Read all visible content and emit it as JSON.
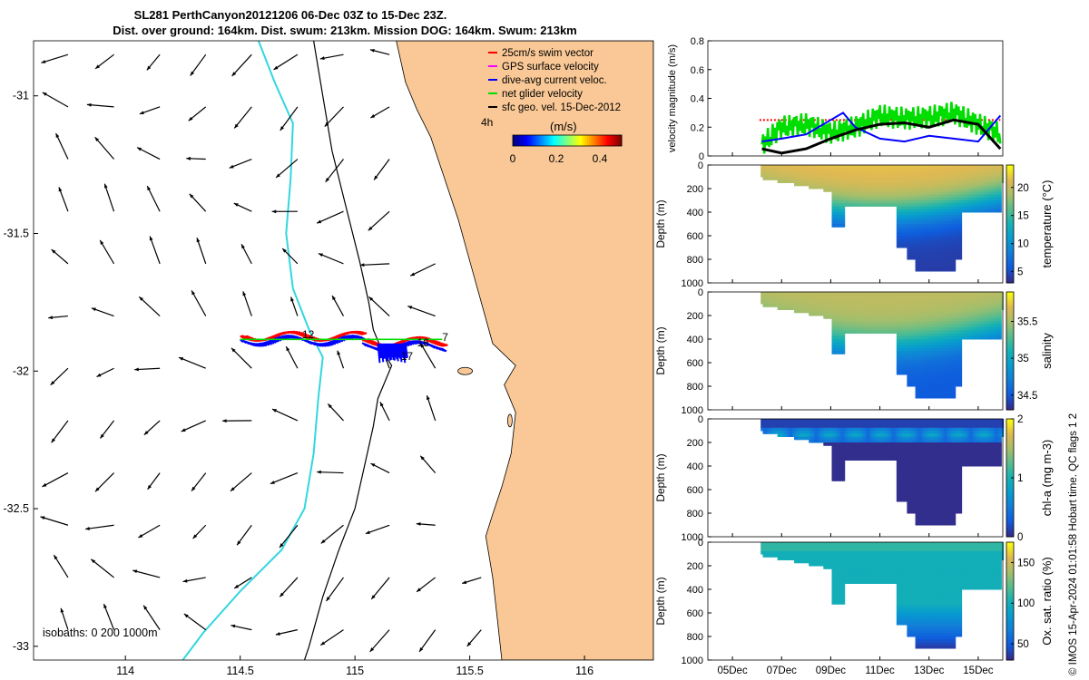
{
  "title": {
    "line1": "SL281 PerthCanyon20121206 06-Dec 03Z to 15-Dec 23Z.",
    "line2": "Dist. over ground: 164km. Dist. swum: 213km. Mission DOG: 164km. Swum: 213km"
  },
  "copyright": "© IMOS 15-Apr-2024 01:01:58 Hobart time. QC flags 1  2",
  "colors": {
    "land": "#f9c896",
    "isobath200": "#33d6e0",
    "isobath1000": "#000000"
  },
  "chart_data": [
    {
      "type": "map",
      "lon_lim": [
        113.6,
        116.3
      ],
      "lat_lim": [
        -33.05,
        -30.8
      ],
      "x_ticks": [
        "114",
        "114.5",
        "115",
        "115.5",
        "116"
      ],
      "y_ticks": [
        "-31",
        "-31.5",
        "-32",
        "-32.5",
        "-33"
      ],
      "legend": {
        "entries": [
          {
            "label": "25cm/s swim vector",
            "color": "#ff0000"
          },
          {
            "label": "GPS surface velocity",
            "color": "#ff00ff"
          },
          {
            "label": "dive-avg current veloc.",
            "color": "#0000ff"
          },
          {
            "label": "net glider velocity",
            "color": "#00dd00"
          },
          {
            "label": "sfc geo. vel. 15-Dec-2012",
            "color": "#000000"
          }
        ],
        "duration": "4h"
      },
      "colorbar": {
        "title": "(m/s)",
        "ticks": [
          "0",
          "0.2",
          "0.4"
        ],
        "range": [
          0,
          0.5
        ]
      },
      "isobaths_label": "isobaths: 0   200  1000m",
      "track_labels": [
        {
          "text": "12",
          "lon": 114.77,
          "lat": -31.88
        },
        {
          "text": "16",
          "lon": 115.27,
          "lat": -31.91
        },
        {
          "text": "17",
          "lon": 115.2,
          "lat": -31.96
        },
        {
          "text": "7",
          "lon": 115.38,
          "lat": -31.89
        }
      ]
    },
    {
      "type": "line",
      "ylabel": "velocity magnitude (m/s)",
      "ylim": [
        0,
        0.8
      ],
      "yticks": [
        "0",
        "0.2",
        "0.4",
        "0.6",
        "0.8"
      ],
      "xlim_days": [
        4,
        16
      ],
      "series": [
        {
          "name": "swim speed",
          "color": "#ff0000",
          "values_desc": "constant ~0.25 m/s",
          "start": 6.1,
          "end": 15.9,
          "value": 0.25
        },
        {
          "name": "net glider velocity",
          "color": "#00dd00",
          "x": [
            6.2,
            7,
            8,
            9,
            10,
            11,
            12,
            13,
            14,
            15,
            15.9
          ],
          "y": [
            0.08,
            0.2,
            0.22,
            0.16,
            0.2,
            0.28,
            0.26,
            0.27,
            0.3,
            0.22,
            0.15
          ]
        },
        {
          "name": "dive-avg current veloc.",
          "color": "#0000ff",
          "x": [
            6.2,
            7,
            8,
            9,
            9.5,
            10,
            11,
            12,
            13,
            14,
            15,
            15.9
          ],
          "y": [
            0.1,
            0.12,
            0.15,
            0.25,
            0.3,
            0.2,
            0.12,
            0.1,
            0.14,
            0.12,
            0.1,
            0.28
          ]
        },
        {
          "name": "sfc geo. vel.",
          "color": "#000000",
          "x": [
            6.2,
            7,
            8,
            9,
            10,
            11,
            12,
            13,
            14,
            15,
            15.9
          ],
          "y": [
            0.05,
            0.02,
            0.05,
            0.12,
            0.18,
            0.22,
            0.23,
            0.2,
            0.25,
            0.22,
            0.05
          ]
        }
      ]
    },
    {
      "type": "heatmap",
      "ylabel": "Depth (m)",
      "yticks": [
        "0",
        "200",
        "400",
        "600",
        "800",
        "1000"
      ],
      "ylim": [
        0,
        1000
      ],
      "cbar_label": "temperature (°C)",
      "cbar_ticks": [
        "5",
        "10",
        "15",
        "20"
      ],
      "crange": [
        3,
        24
      ],
      "colormap": "parula",
      "surface": 22,
      "deep": 4,
      "cline_depth": 300
    },
    {
      "type": "heatmap",
      "ylabel": "Depth (m)",
      "yticks": [
        "0",
        "200",
        "400",
        "600",
        "800",
        "1000"
      ],
      "ylim": [
        0,
        1000
      ],
      "cbar_label": "salinity",
      "cbar_ticks": [
        "34.5",
        "35",
        "35.5"
      ],
      "crange": [
        34.3,
        35.9
      ],
      "colormap": "parula",
      "surface": 35.6,
      "deep": 34.5,
      "cline_depth": 330
    },
    {
      "type": "heatmap",
      "ylabel": "Depth (m)",
      "yticks": [
        "0",
        "200",
        "400",
        "600",
        "800",
        "1000"
      ],
      "ylim": [
        0,
        1000
      ],
      "cbar_label": "chl-a (mg m-3)",
      "cbar_ticks": [
        "0",
        "1",
        "2"
      ],
      "crange": [
        0,
        2
      ],
      "colormap": "parula",
      "surface": 0.15,
      "deep": 0.02,
      "cline_depth": 100
    },
    {
      "type": "heatmap",
      "ylabel": "Depth (m)",
      "yticks": [
        "0",
        "200",
        "400",
        "600",
        "800",
        "1000"
      ],
      "ylim": [
        0,
        1000
      ],
      "cbar_label": "Ox. sat. ratio (%)",
      "cbar_ticks": [
        "50",
        "100",
        "150"
      ],
      "crange": [
        30,
        175
      ],
      "colormap": "parula",
      "surface": 105,
      "deep": 60,
      "cline_depth": 600
    }
  ],
  "time_axis": {
    "ticks": [
      "05Dec",
      "07Dec",
      "09Dec",
      "11Dec",
      "13Dec",
      "15Dec"
    ],
    "tick_days": [
      5,
      7,
      9,
      11,
      13,
      15
    ],
    "xlim_days": [
      4,
      16
    ]
  }
}
